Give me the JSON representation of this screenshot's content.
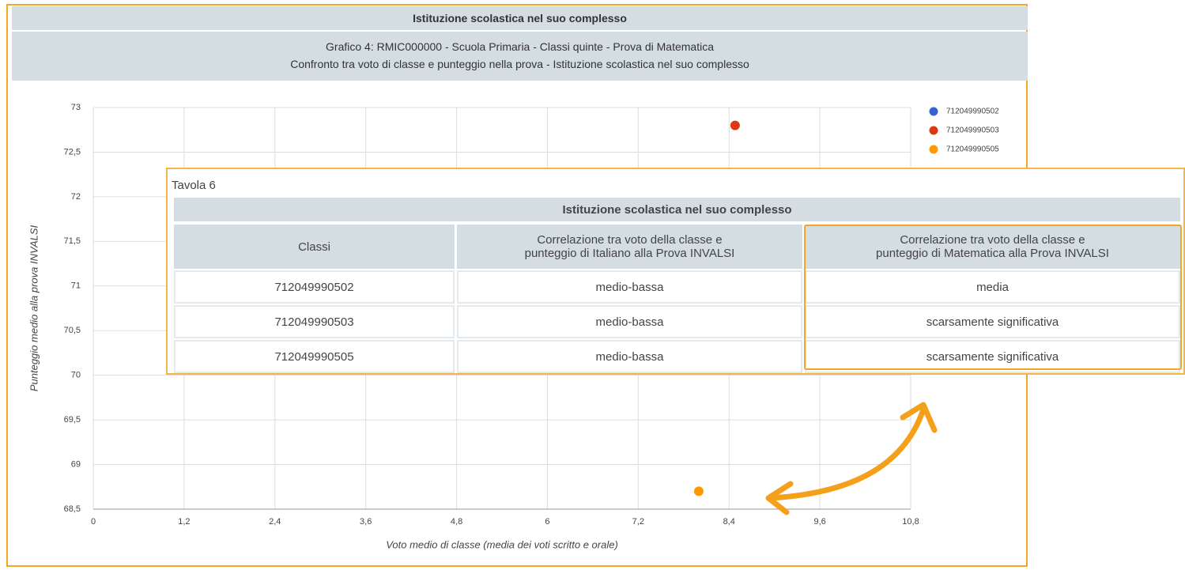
{
  "header": {
    "title": "Istituzione scolastica nel suo complesso"
  },
  "chart_data": {
    "type": "scatter",
    "title": "Grafico 4: RMIC000000 - Scuola Primaria - Classi quinte - Prova di Matematica",
    "subtitle": "Confronto tra voto di classe e punteggio nella prova - Istituzione scolastica nel suo complesso",
    "xlabel": "Voto medio di classe (media dei voti scritto e orale)",
    "ylabel": "Punteggio medio alla prova INVALSI",
    "xlim": [
      0,
      10.8
    ],
    "xticks": [
      0,
      {
        "value": 1.2,
        "label": "1,2"
      },
      {
        "value": 2.4,
        "label": "2,4"
      },
      {
        "value": 3.6,
        "label": "3,6"
      },
      {
        "value": 4.8,
        "label": "4,8"
      },
      6,
      {
        "value": 7.2,
        "label": "7,2"
      },
      {
        "value": 8.4,
        "label": "8,4"
      },
      {
        "value": 9.6,
        "label": "9,6"
      },
      {
        "value": 10.8,
        "label": "10,8"
      }
    ],
    "ylim": [
      68.5,
      73
    ],
    "yticks": [
      {
        "value": 68.5,
        "label": "68,5"
      },
      69,
      {
        "value": 69.5,
        "label": "69,5"
      },
      70,
      {
        "value": 70.5,
        "label": "70,5"
      },
      71,
      {
        "value": 71.5,
        "label": "71,5"
      },
      72,
      {
        "value": 72.5,
        "label": "72,5"
      },
      73
    ],
    "grid": true,
    "legend": "right",
    "series": [
      {
        "name": "712049990502",
        "color": "#3366cc",
        "x": [],
        "values": []
      },
      {
        "name": "712049990503",
        "color": "#dc3912",
        "x": [
          8.48
        ],
        "values": [
          72.8
        ]
      },
      {
        "name": "712049990505",
        "color": "#ff9900",
        "x": [
          8.0
        ],
        "values": [
          68.7
        ]
      }
    ]
  },
  "table": {
    "caption": "Tavola 6",
    "title": "Istituzione scolastica nel suo complesso",
    "columns": [
      [
        "Classi"
      ],
      [
        "Correlazione tra voto della classe e",
        "punteggio di Italiano alla Prova INVALSI"
      ],
      [
        "Correlazione tra voto della classe e",
        "punteggio di Matematica alla Prova INVALSI"
      ]
    ],
    "rows": [
      [
        "712049990502",
        "medio-bassa",
        "media"
      ],
      [
        "712049990503",
        "medio-bassa",
        "scarsamente significativa"
      ],
      [
        "712049990505",
        "medio-bassa",
        "scarsamente significativa"
      ]
    ]
  }
}
